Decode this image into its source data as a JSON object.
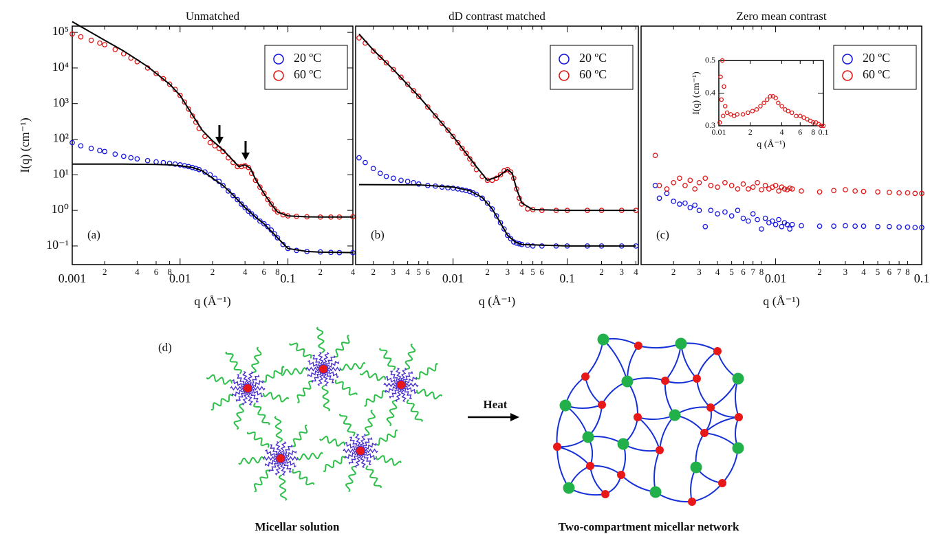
{
  "chart_data": [
    {
      "type": "scatter",
      "title": "Unmatched",
      "panel_label": "(a)",
      "xlabel": "q (Å⁻¹)",
      "ylabel": "I(q) (cm⁻¹)",
      "xscale": "log",
      "yscale": "log",
      "xlim": [
        0.001,
        0.4
      ],
      "ylim": [
        0.03,
        150000
      ],
      "xticks": [
        0.001,
        {
          "value": 0.002,
          "label": "2"
        },
        {
          "value": 0.004,
          "label": "4"
        },
        {
          "value": 0.006,
          "label": "6"
        },
        {
          "value": 0.008,
          "label": "8"
        },
        0.01,
        {
          "value": 0.02,
          "label": "2"
        },
        {
          "value": 0.04,
          "label": "4"
        },
        {
          "value": 0.06,
          "label": "6"
        },
        {
          "value": 0.08,
          "label": "8"
        },
        0.1,
        {
          "value": 0.2,
          "label": "2"
        },
        {
          "value": 0.4,
          "label": "4"
        }
      ],
      "yticks": [
        {
          "value": 0.1,
          "label": "10⁻¹"
        },
        {
          "value": 1,
          "label": "10⁰"
        },
        {
          "value": 10,
          "label": "10¹"
        },
        {
          "value": 100,
          "label": "10²"
        },
        {
          "value": 1000,
          "label": "10³"
        },
        {
          "value": 10000,
          "label": "10⁴"
        },
        {
          "value": 100000,
          "label": "10⁵"
        }
      ],
      "legend": "upper right",
      "series": [
        {
          "name": "20 ºC",
          "color": "#1515e0",
          "x": [
            0.001,
            0.0012,
            0.0015,
            0.0018,
            0.002,
            0.0025,
            0.003,
            0.0035,
            0.004,
            0.005,
            0.006,
            0.007,
            0.008,
            0.009,
            0.01,
            0.011,
            0.012,
            0.013,
            0.014,
            0.015,
            0.017,
            0.019,
            0.021,
            0.023,
            0.025,
            0.028,
            0.031,
            0.034,
            0.037,
            0.04,
            0.043,
            0.046,
            0.05,
            0.055,
            0.06,
            0.065,
            0.07,
            0.075,
            0.08,
            0.09,
            0.1,
            0.12,
            0.15,
            0.2,
            0.25,
            0.3,
            0.4
          ],
          "values": [
            80,
            65,
            55,
            48,
            45,
            38,
            33,
            30,
            28,
            25,
            23,
            22,
            21,
            20,
            19,
            18,
            17,
            16,
            15,
            14,
            12,
            10,
            8,
            6.5,
            5,
            3.5,
            2.6,
            2,
            1.5,
            1.2,
            0.95,
            0.8,
            0.65,
            0.5,
            0.42,
            0.35,
            0.28,
            0.22,
            0.17,
            0.11,
            0.085,
            0.075,
            0.07,
            0.068,
            0.066,
            0.065,
            0.065
          ]
        },
        {
          "name": "60 ºC",
          "color": "#e01515",
          "x": [
            0.001,
            0.0012,
            0.0015,
            0.0018,
            0.002,
            0.0025,
            0.003,
            0.0035,
            0.004,
            0.005,
            0.006,
            0.007,
            0.008,
            0.009,
            0.01,
            0.011,
            0.012,
            0.013,
            0.014,
            0.015,
            0.017,
            0.019,
            0.021,
            0.023,
            0.025,
            0.028,
            0.031,
            0.034,
            0.037,
            0.04,
            0.043,
            0.046,
            0.05,
            0.055,
            0.06,
            0.065,
            0.07,
            0.075,
            0.08,
            0.09,
            0.1,
            0.12,
            0.15,
            0.2,
            0.25,
            0.3,
            0.4
          ],
          "values": [
            90000,
            75000,
            60000,
            50000,
            45000,
            33000,
            25000,
            19000,
            15000,
            10000,
            7000,
            5000,
            3500,
            2500,
            1700,
            1100,
            700,
            450,
            300,
            200,
            120,
            80,
            65,
            55,
            45,
            30,
            22,
            17,
            17,
            18,
            16,
            11,
            7,
            4.5,
            3,
            2,
            1.5,
            1.1,
            0.9,
            0.75,
            0.7,
            0.68,
            0.66,
            0.65,
            0.65,
            0.65,
            0.66
          ]
        }
      ],
      "fits": [
        {
          "color": "#000000",
          "x": [
            0.001,
            0.003,
            0.006,
            0.008,
            0.01,
            0.013,
            0.016,
            0.02,
            0.025,
            0.03,
            0.04,
            0.05,
            0.06,
            0.08,
            0.1,
            0.15,
            0.2,
            0.4
          ],
          "values": [
            20,
            20,
            19.5,
            19,
            18,
            16,
            13,
            8,
            5,
            3,
            1.2,
            0.65,
            0.42,
            0.17,
            0.085,
            0.07,
            0.067,
            0.065
          ]
        },
        {
          "color": "#000000",
          "x": [
            0.001,
            0.002,
            0.003,
            0.005,
            0.008,
            0.01,
            0.013,
            0.016,
            0.02,
            0.025,
            0.03,
            0.035,
            0.04,
            0.045,
            0.05,
            0.06,
            0.07,
            0.08,
            0.1,
            0.15,
            0.2,
            0.4
          ],
          "values": [
            200000,
            60000,
            30000,
            11000,
            3500,
            1700,
            480,
            180,
            90,
            50,
            28,
            17,
            19,
            15,
            7.5,
            3,
            1.5,
            0.9,
            0.7,
            0.66,
            0.65,
            0.65
          ]
        }
      ]
    },
    {
      "type": "scatter",
      "title": "dD contrast matched",
      "panel_label": "(b)",
      "xlabel": "q (Å⁻¹)",
      "xscale": "log",
      "yscale": "log",
      "xlim": [
        0.0014,
        0.42
      ],
      "ylim": [
        0.03,
        150000
      ],
      "xticks": [
        {
          "value": 0.002,
          "label": "2"
        },
        {
          "value": 0.003,
          "label": "3"
        },
        {
          "value": 0.004,
          "label": "4"
        },
        {
          "value": 0.005,
          "label": "5"
        },
        {
          "value": 0.006,
          "label": "6"
        },
        0.01,
        {
          "value": 0.02,
          "label": "2"
        },
        {
          "value": 0.03,
          "label": "3"
        },
        {
          "value": 0.04,
          "label": "4"
        },
        {
          "value": 0.05,
          "label": "5"
        },
        {
          "value": 0.06,
          "label": "6"
        },
        0.1,
        {
          "value": 0.2,
          "label": "2"
        },
        {
          "value": 0.3,
          "label": "3"
        },
        {
          "value": 0.4,
          "label": "4"
        }
      ],
      "legend": "upper right",
      "series": [
        {
          "name": "20 ºC",
          "color": "#1515e0",
          "x": [
            0.0015,
            0.0017,
            0.002,
            0.0023,
            0.0026,
            0.003,
            0.0035,
            0.004,
            0.0045,
            0.005,
            0.006,
            0.007,
            0.008,
            0.009,
            0.01,
            0.011,
            0.012,
            0.013,
            0.014,
            0.015,
            0.016,
            0.018,
            0.02,
            0.022,
            0.024,
            0.026,
            0.028,
            0.03,
            0.032,
            0.034,
            0.036,
            0.038,
            0.04,
            0.045,
            0.05,
            0.06,
            0.08,
            0.1,
            0.15,
            0.2,
            0.3,
            0.4
          ],
          "values": [
            30,
            22,
            15,
            11,
            9,
            8,
            7,
            6.5,
            6,
            5.5,
            5,
            4.8,
            4.5,
            4.3,
            4.2,
            4,
            3.8,
            3.6,
            3.4,
            3.1,
            2.8,
            2.2,
            1.6,
            1.1,
            0.7,
            0.45,
            0.3,
            0.2,
            0.16,
            0.13,
            0.12,
            0.115,
            0.11,
            0.105,
            0.1,
            0.1,
            0.1,
            0.1,
            0.1,
            0.1,
            0.1,
            0.1
          ]
        },
        {
          "name": "60 ºC",
          "color": "#e01515",
          "x": [
            0.0015,
            0.0017,
            0.002,
            0.0023,
            0.0026,
            0.003,
            0.0035,
            0.004,
            0.0045,
            0.005,
            0.006,
            0.007,
            0.008,
            0.009,
            0.01,
            0.011,
            0.012,
            0.013,
            0.014,
            0.015,
            0.016,
            0.018,
            0.02,
            0.022,
            0.024,
            0.026,
            0.028,
            0.03,
            0.032,
            0.034,
            0.036,
            0.038,
            0.04,
            0.045,
            0.05,
            0.06,
            0.08,
            0.1,
            0.15,
            0.2,
            0.3,
            0.4
          ],
          "values": [
            70000,
            50000,
            30000,
            20000,
            14000,
            9000,
            5500,
            3500,
            2300,
            1600,
            800,
            450,
            280,
            180,
            120,
            80,
            55,
            40,
            28,
            20,
            14,
            9,
            7,
            7,
            8,
            10,
            13,
            14,
            12,
            8,
            4,
            2.2,
            1.5,
            1.1,
            1.05,
            1,
            1,
            1,
            1,
            1,
            1,
            1
          ]
        }
      ],
      "fits": [
        {
          "color": "#000000",
          "x": [
            0.0015,
            0.005,
            0.01,
            0.014,
            0.018,
            0.022,
            0.026,
            0.03,
            0.035,
            0.04,
            0.1,
            0.4
          ],
          "values": [
            5.3,
            5.2,
            4.5,
            3.6,
            2.3,
            1.1,
            0.45,
            0.2,
            0.13,
            0.11,
            0.1,
            0.1
          ]
        },
        {
          "color": "#000000",
          "x": [
            0.0015,
            0.002,
            0.003,
            0.005,
            0.008,
            0.01,
            0.013,
            0.016,
            0.02,
            0.025,
            0.03,
            0.033,
            0.036,
            0.04,
            0.05,
            0.1,
            0.2,
            0.4
          ],
          "values": [
            90000,
            32000,
            9000,
            1600,
            280,
            120,
            40,
            17,
            7,
            9,
            14,
            11,
            4,
            1.6,
            1.05,
            1,
            1,
            1
          ]
        }
      ]
    },
    {
      "type": "scatter",
      "title": "Zero mean contrast",
      "panel_label": "(c)",
      "xlabel": "q (Å⁻¹)",
      "xscale": "log",
      "yscale": "log",
      "xlim": [
        0.0012,
        0.1
      ],
      "ylim": [
        0.03,
        150000
      ],
      "xticks": [
        {
          "value": 0.002,
          "label": "2"
        },
        {
          "value": 0.003,
          "label": "3"
        },
        {
          "value": 0.004,
          "label": "4"
        },
        {
          "value": 0.005,
          "label": "5"
        },
        {
          "value": 0.006,
          "label": "6"
        },
        {
          "value": 0.007,
          "label": "7"
        },
        {
          "value": 0.008,
          "label": "8"
        },
        0.01,
        {
          "value": 0.02,
          "label": "2"
        },
        {
          "value": 0.03,
          "label": "3"
        },
        {
          "value": 0.04,
          "label": "4"
        },
        {
          "value": 0.05,
          "label": "5"
        },
        {
          "value": 0.06,
          "label": "6"
        },
        {
          "value": 0.07,
          "label": "7"
        },
        {
          "value": 0.08,
          "label": "8"
        },
        0.1
      ],
      "legend": "upper right",
      "series": [
        {
          "name": "20 ºC",
          "color": "#1515e0",
          "x": [
            0.0015,
            0.0016,
            0.0018,
            0.002,
            0.0022,
            0.0024,
            0.0026,
            0.0028,
            0.003,
            0.0033,
            0.0036,
            0.004,
            0.0045,
            0.005,
            0.0055,
            0.006,
            0.0065,
            0.007,
            0.0075,
            0.008,
            0.0085,
            0.009,
            0.0095,
            0.01,
            0.0105,
            0.011,
            0.0115,
            0.012,
            0.0125,
            0.013,
            0.015,
            0.02,
            0.025,
            0.03,
            0.035,
            0.04,
            0.05,
            0.06,
            0.07,
            0.08,
            0.09,
            0.1
          ],
          "values": [
            5,
            2.2,
            3,
            1.8,
            1.5,
            1.6,
            1.2,
            1.4,
            1,
            0.35,
            1,
            0.8,
            0.9,
            0.7,
            1,
            0.6,
            0.5,
            0.8,
            0.55,
            0.3,
            0.6,
            0.45,
            0.5,
            0.4,
            0.55,
            0.35,
            0.45,
            0.4,
            0.3,
            0.4,
            0.37,
            0.36,
            0.36,
            0.37,
            0.36,
            0.36,
            0.35,
            0.35,
            0.34,
            0.34,
            0.33,
            0.33
          ]
        },
        {
          "name": "60 ºC",
          "color": "#e01515",
          "x": [
            0.0015,
            0.0016,
            0.0018,
            0.002,
            0.0022,
            0.0024,
            0.0026,
            0.0028,
            0.003,
            0.0033,
            0.0036,
            0.004,
            0.0045,
            0.005,
            0.0055,
            0.006,
            0.0065,
            0.007,
            0.0075,
            0.008,
            0.0085,
            0.009,
            0.0095,
            0.01,
            0.0105,
            0.011,
            0.0115,
            0.012,
            0.0125,
            0.013,
            0.015,
            0.02,
            0.025,
            0.03,
            0.035,
            0.04,
            0.05,
            0.06,
            0.07,
            0.08,
            0.09,
            0.1
          ],
          "values": [
            35,
            5,
            4,
            6,
            8,
            5,
            7,
            4,
            6,
            8,
            5,
            4.5,
            6,
            5,
            4,
            5.5,
            4,
            4.5,
            6,
            3.8,
            5,
            4,
            4.5,
            5,
            3.5,
            4.5,
            4,
            3.8,
            4.2,
            4,
            3.5,
            3.3,
            3.6,
            3.8,
            3.5,
            3.4,
            3.3,
            3.2,
            3.1,
            3.1,
            3,
            3
          ]
        }
      ]
    },
    {
      "type": "scatter",
      "xlabel": "q (Å⁻¹)",
      "ylabel": "I(q) (cm⁻¹)",
      "xscale": "log",
      "xlim": [
        0.01,
        0.1
      ],
      "ylim": [
        0.3,
        0.5
      ],
      "xticks": [
        0.01,
        {
          "value": 0.02,
          "label": "2"
        },
        {
          "value": 0.04,
          "label": "4"
        },
        {
          "value": 0.06,
          "label": "6"
        },
        {
          "value": 0.08,
          "label": "8"
        },
        0.1
      ],
      "yticks": [
        0.3,
        0.4,
        0.5
      ],
      "series": [
        {
          "color": "#e01515",
          "x": [
            0.0102,
            0.0104,
            0.0106,
            0.0108,
            0.011,
            0.0112,
            0.0115,
            0.012,
            0.013,
            0.014,
            0.015,
            0.017,
            0.019,
            0.021,
            0.023,
            0.025,
            0.027,
            0.029,
            0.031,
            0.033,
            0.035,
            0.037,
            0.04,
            0.043,
            0.046,
            0.05,
            0.055,
            0.06,
            0.065,
            0.07,
            0.075,
            0.08,
            0.085,
            0.09,
            0.095,
            0.1
          ],
          "values": [
            0.31,
            0.45,
            0.38,
            0.5,
            0.33,
            0.42,
            0.36,
            0.34,
            0.335,
            0.33,
            0.335,
            0.335,
            0.34,
            0.345,
            0.35,
            0.36,
            0.37,
            0.38,
            0.39,
            0.39,
            0.385,
            0.37,
            0.36,
            0.35,
            0.345,
            0.34,
            0.33,
            0.33,
            0.325,
            0.32,
            0.315,
            0.31,
            0.31,
            0.305,
            0.3,
            0.3
          ]
        }
      ]
    }
  ],
  "diagram": {
    "label": "(d)",
    "arrow_label": "Heat",
    "left_caption": "Micellar solution",
    "right_caption": "Two-compartment micellar network"
  }
}
